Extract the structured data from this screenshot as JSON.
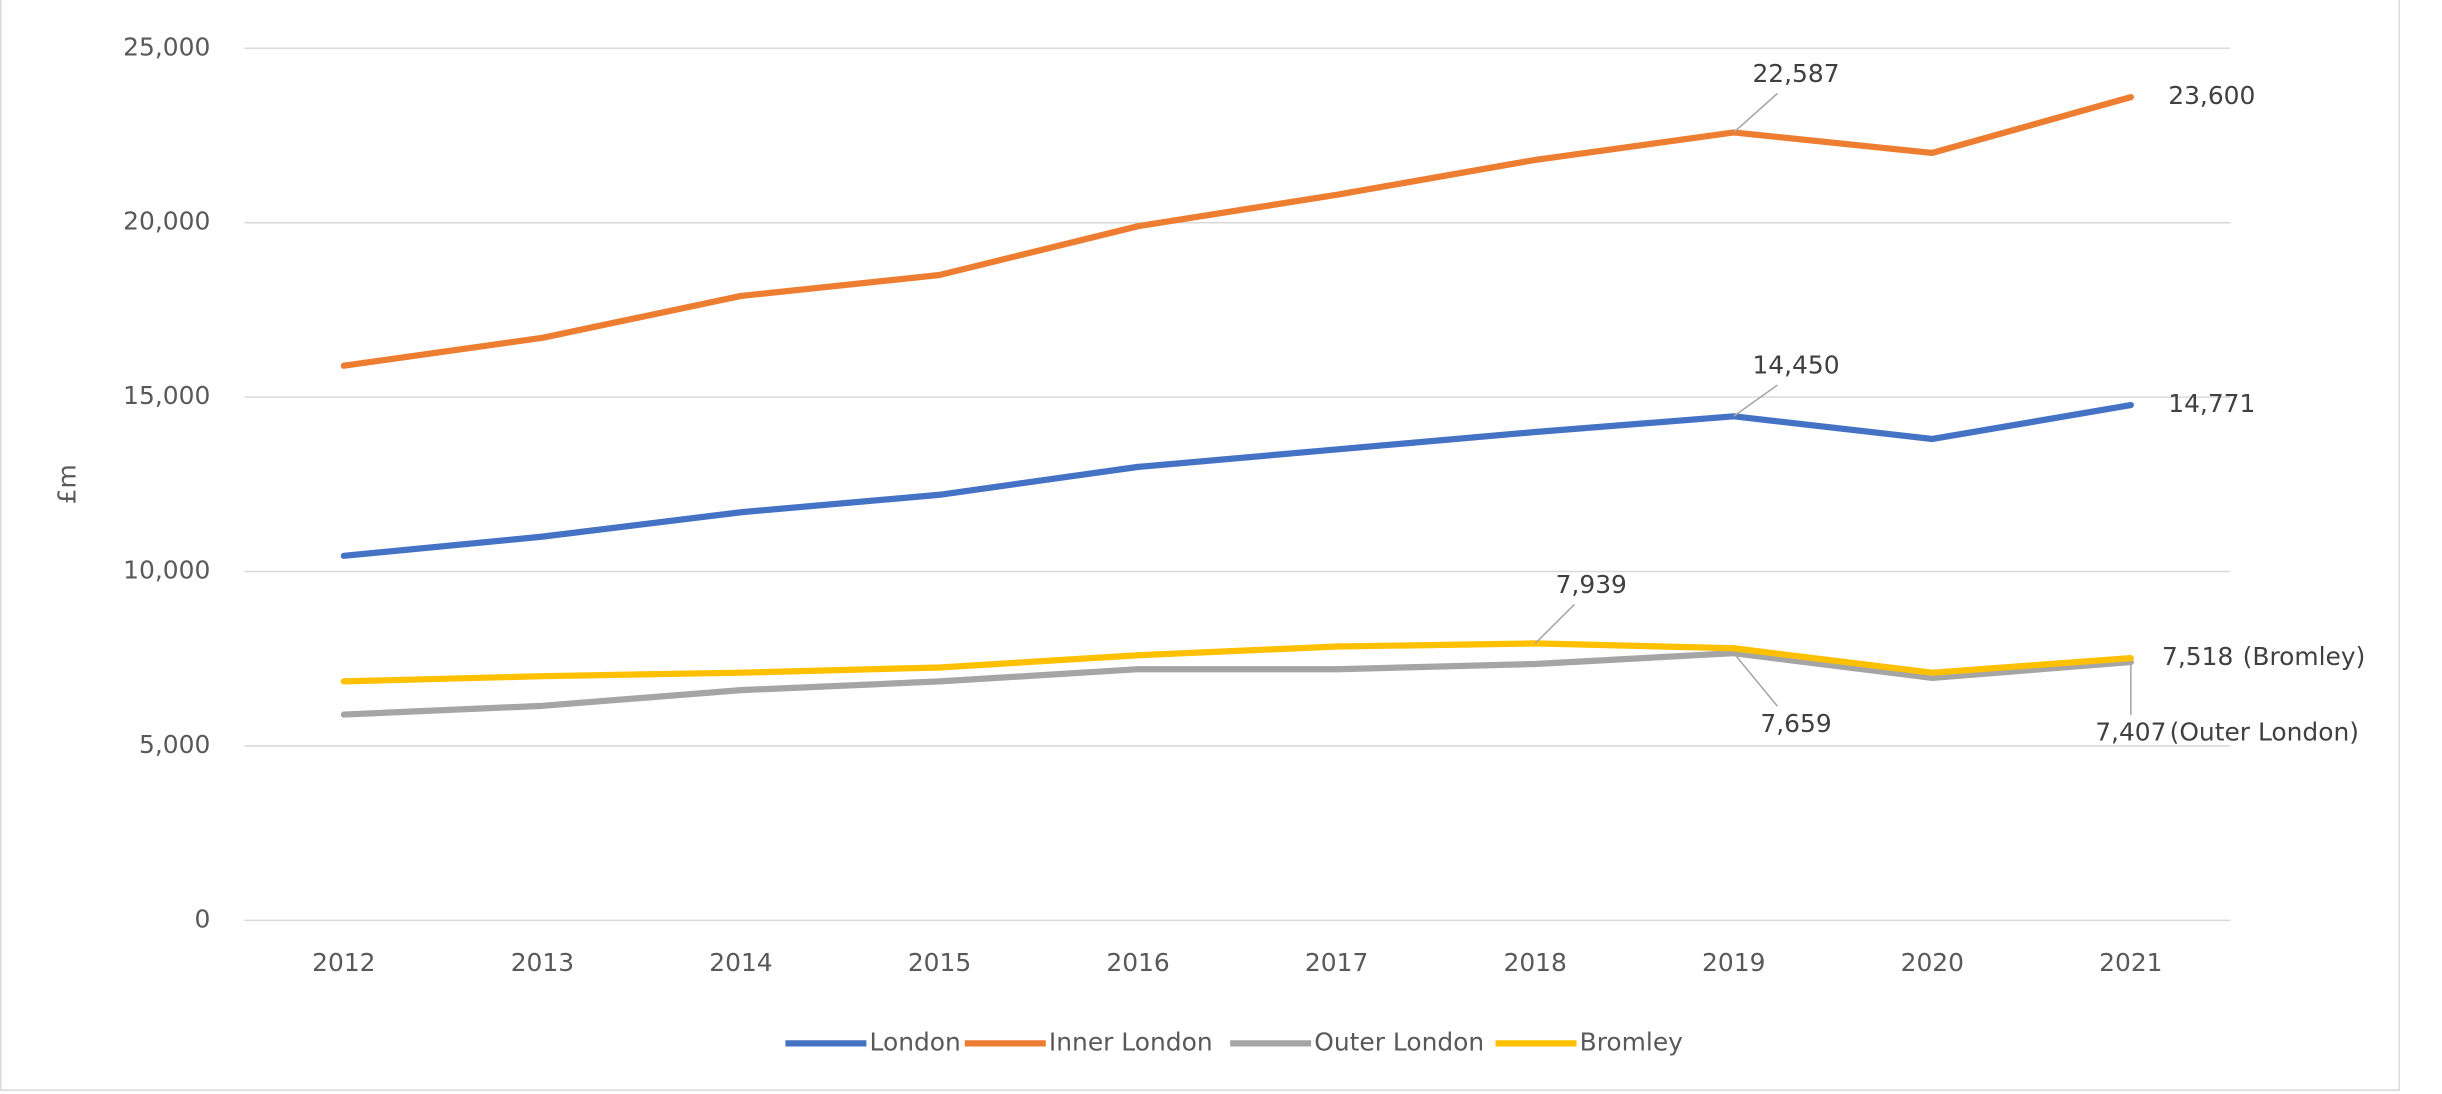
{
  "chart_data": {
    "type": "line",
    "y_label": "£m",
    "categories": [
      "2012",
      "2013",
      "2014",
      "2015",
      "2016",
      "2017",
      "2018",
      "2019",
      "2020",
      "2021"
    ],
    "series": [
      {
        "name": "London",
        "color": "#4472c4",
        "values": [
          10450,
          11000,
          11700,
          12200,
          13000,
          13500,
          14000,
          14450,
          13800,
          14771
        ],
        "value_labels": [
          null,
          null,
          null,
          null,
          null,
          null,
          null,
          "14,450",
          null,
          "14,771"
        ]
      },
      {
        "name": "Inner London",
        "color": "#ed7d31",
        "values": [
          15900,
          16700,
          17900,
          18500,
          19900,
          20800,
          21800,
          22587,
          22000,
          23600
        ],
        "value_labels": [
          null,
          null,
          null,
          null,
          null,
          null,
          null,
          "22,587",
          null,
          "23,600"
        ]
      },
      {
        "name": "Outer London",
        "color": "#a5a5a5",
        "values": [
          5900,
          6150,
          6600,
          6850,
          7200,
          7200,
          7350,
          7659,
          6950,
          7407
        ],
        "value_labels": [
          null,
          null,
          null,
          null,
          null,
          null,
          null,
          "7,659",
          null,
          "7,407"
        ]
      },
      {
        "name": "Bromley",
        "color": "#ffc000",
        "values": [
          6850,
          7000,
          7100,
          7250,
          7600,
          7850,
          7939,
          7800,
          7100,
          7518
        ],
        "value_labels": [
          null,
          null,
          null,
          null,
          null,
          null,
          "7,939",
          null,
          null,
          "7,518"
        ]
      }
    ],
    "annotations": [
      {
        "text": "(Bromley)"
      },
      {
        "text": "(Outer London)"
      }
    ],
    "ylim": [
      0,
      25000
    ],
    "yticks": [
      0,
      {
        "value": 5000,
        "label": "5,000"
      },
      {
        "value": 10000,
        "label": "10,000"
      },
      {
        "value": 15000,
        "label": "15,000"
      },
      {
        "value": 20000,
        "label": "20,000"
      },
      {
        "value": 25000,
        "label": "25,000"
      }
    ],
    "grid": true,
    "legend": "bottom"
  }
}
